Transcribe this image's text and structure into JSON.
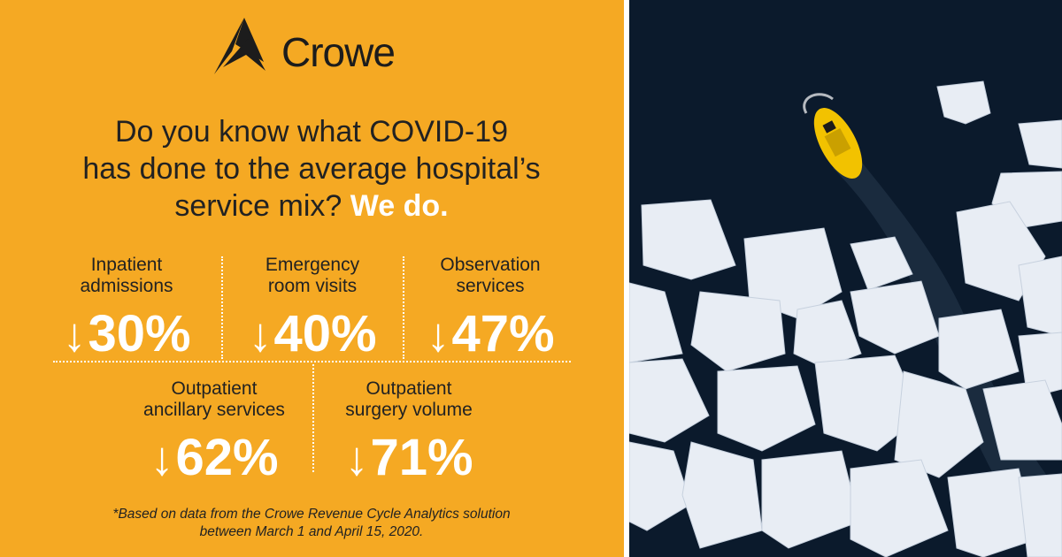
{
  "brand": {
    "name": "Crowe"
  },
  "headline": {
    "line1": "Do you know what COVID-19",
    "line2": "has done to the average hospital’s",
    "line3": "service mix?",
    "line3_bold": "We do."
  },
  "stats": [
    {
      "label_line1": "Inpatient",
      "label_line2": "admissions",
      "arrow": "↓",
      "value": "30%"
    },
    {
      "label_line1": "Emergency",
      "label_line2": "room visits",
      "arrow": "↓",
      "value": "40%"
    },
    {
      "label_line1": "Observation",
      "label_line2": "services",
      "arrow": "↓",
      "value": "47%"
    },
    {
      "label_line1": "Outpatient",
      "label_line2": "ancillary services",
      "arrow": "↓",
      "value": "62%"
    },
    {
      "label_line1": "Outpatient",
      "label_line2": "surgery volume",
      "arrow": "↓",
      "value": "71%"
    }
  ],
  "footnote": {
    "line1": "*Based on data from the Crowe Revenue Cycle Analytics solution",
    "line2": "between March 1 and April 15, 2020."
  },
  "colors": {
    "panel": "#F5A923",
    "accent_text": "#ffffff",
    "body_text": "#222222",
    "water": "#0b1a2c",
    "ice": "#e9eef5",
    "boat": "#f2c200"
  },
  "photo": {
    "subject": "aerial view of a yellow boat breaking through sea ice"
  }
}
